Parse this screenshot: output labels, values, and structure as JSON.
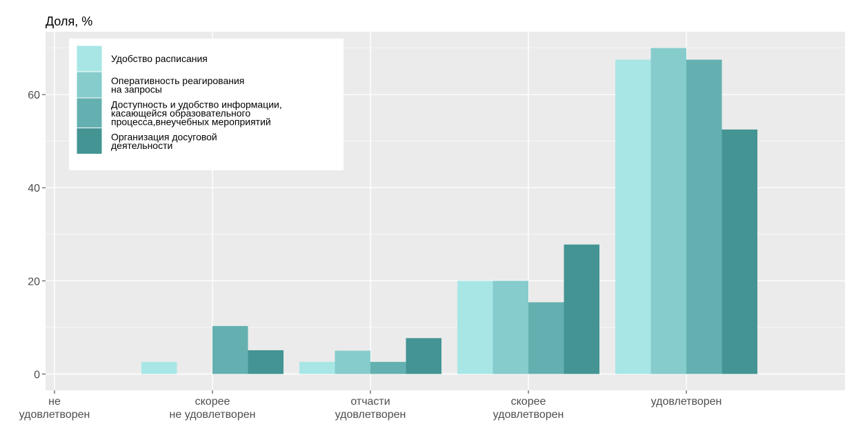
{
  "chart_data": {
    "type": "bar",
    "title": "Доля, %",
    "categories": [
      [
        "не",
        "удовлетворен"
      ],
      [
        "скорее",
        "не удовлетворен"
      ],
      [
        "отчасти",
        "удовлетворен"
      ],
      [
        "скорее",
        "удовлетворен"
      ],
      [
        "удовлетворен"
      ]
    ],
    "series": [
      {
        "name": [
          "Удобство расписания"
        ],
        "color": "#a8e6e6",
        "values": [
          0,
          2.6,
          2.6,
          20.0,
          67.5
        ]
      },
      {
        "name": [
          "Оперативность реагирования",
          "на запросы"
        ],
        "color": "#86cccc",
        "values": [
          0,
          0,
          5.0,
          20.0,
          70.0
        ]
      },
      {
        "name": [
          "Доступность и удобство информации,",
          "касающейся образовательного",
          "процесса,внеучебных мероприятий"
        ],
        "color": "#64b0b0",
        "values": [
          0,
          10.3,
          2.6,
          15.4,
          67.5
        ]
      },
      {
        "name": [
          "Организация досуговой",
          "деятельности"
        ],
        "color": "#449494",
        "values": [
          0,
          5.1,
          7.7,
          27.8,
          52.5
        ]
      }
    ],
    "yticks": [
      0,
      20,
      40,
      60
    ],
    "ylim": [
      -3.5,
      73.5
    ],
    "grid": true,
    "legend_position": "top-left",
    "panel_background": "#ebebeb",
    "gridline_color": "#ffffff"
  }
}
